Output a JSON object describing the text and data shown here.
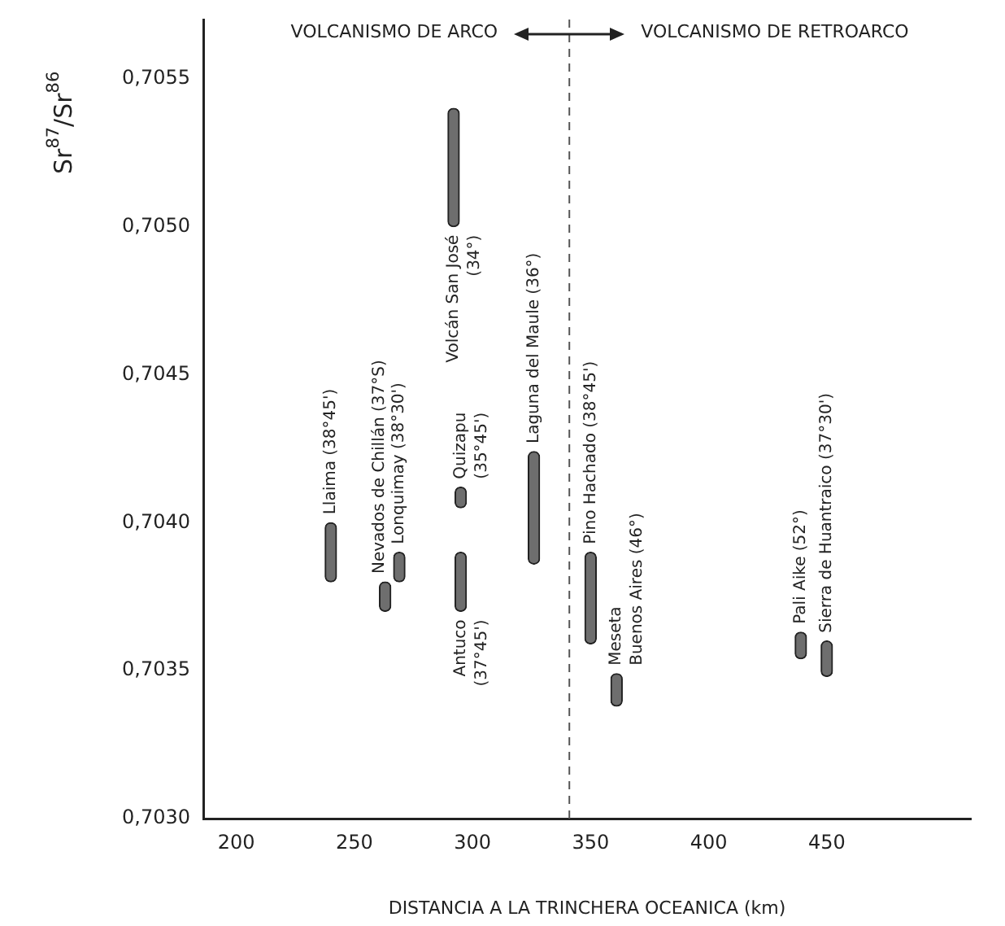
{
  "chart_data": {
    "type": "bar",
    "xlabel": "DISTANCIA A LA TRINCHERA OCEANICA (km)",
    "ylabel": "Sr$^{87}$/Sr$^{86}$",
    "series": [
      {
        "color": "#6e6e6e",
        "x": [
          240,
          263,
          269,
          292,
          295,
          326,
          350,
          361,
          439,
          450
        ],
        "base": [
          0.7038,
          0.7037,
          0.7038,
          0.705,
          0.70405,
          0.70386,
          0.70359,
          0.70338,
          0.70354,
          0.70348
        ],
        "values": [
          0.0002,
          0.0001,
          0.0001,
          0.0004,
          7e-05,
          0.00038,
          0.00031,
          0.00011,
          9e-05,
          0.00012
        ]
      },
      {
        "color": "#6e6e6e",
        "x": [
          295
        ],
        "base": [
          0.7037
        ],
        "values": [
          0.0002
        ]
      }
    ],
    "xlim": [
      186,
      511
    ],
    "xticks": [
      200,
      250,
      300,
      350,
      400,
      450
    ],
    "ylim": [
      0.703,
      0.7057
    ],
    "yticks": [
      {
        "value": 0.703,
        "label": "0,7030"
      },
      {
        "value": 0.7035,
        "label": "0,7035"
      },
      {
        "value": 0.704,
        "label": "0,7040"
      },
      {
        "value": 0.7045,
        "label": "0,7045"
      },
      {
        "value": 0.705,
        "label": "0,7050"
      },
      {
        "value": 0.7055,
        "label": "0,7055"
      }
    ],
    "grid": false,
    "legend": false,
    "ref_lines": [
      {
        "axis": "x",
        "value": 341,
        "line_style": "dashed",
        "color": "#555555"
      }
    ],
    "annotations": [
      "VOLCANISMO DE ARCO",
      "VOLCANISMO DE RETROARCO",
      {
        "text": "Llaima (38°45')",
        "x": 240,
        "y": 0.704
      },
      {
        "text": "Nevados de Chillán (37°S)",
        "x": 263,
        "y": 0.7038
      },
      {
        "text": "Lonquimay (38°30')",
        "x": 269,
        "y": 0.7039
      },
      {
        "text": "Volcán San José",
        "x": 292,
        "y": 0.705
      },
      {
        "text": "(34°)",
        "x": 292,
        "y": 0.705
      },
      {
        "text": "Quizapu",
        "x": 295,
        "y": 0.70412
      },
      {
        "text": "(35°45')",
        "x": 295,
        "y": 0.70412
      },
      {
        "text": "Laguna del Maule (36°)",
        "x": 326,
        "y": 0.70424
      },
      {
        "text": "Pino Hachado (38°45')",
        "x": 350,
        "y": 0.7039
      },
      {
        "text": "Meseta",
        "x": 361,
        "y": 0.70349
      },
      {
        "text": "Buenos Aires (46°)",
        "x": 361,
        "y": 0.70349
      },
      {
        "text": "Pali Aike (52°)",
        "x": 439,
        "y": 0.70363
      },
      {
        "text": "Sierra de Huantraico (37°30')",
        "x": 450,
        "y": 0.7036
      },
      {
        "text": "Antuco",
        "x": 295,
        "y": 0.7037
      },
      {
        "text": "(37°45')",
        "x": 295,
        "y": 0.7037
      }
    ]
  }
}
